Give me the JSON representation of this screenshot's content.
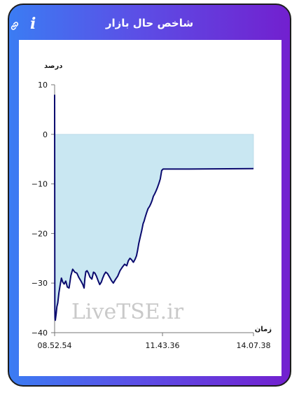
{
  "header": {
    "title": "شاخص حال بازار",
    "info_icon": "i"
  },
  "colors": {
    "line": "#0a0a6e",
    "area": "#c9e7f2",
    "gradient_start": "#3b7cf3",
    "gradient_end": "#7220cf"
  },
  "watermark": "LiveTSE.ir",
  "chart_data": {
    "type": "area",
    "ylabel": "درصد",
    "xlabel": "زمان",
    "ylim": [
      -40,
      10
    ],
    "yticks": [
      10,
      0,
      -10,
      -20,
      -30,
      -40
    ],
    "xtick_labels": [
      "08.52.54",
      "11.43.36",
      "14.07.38"
    ],
    "xtick_minutes": [
      532.9,
      703.6,
      847.6
    ],
    "xlim_minutes": [
      532.9,
      847.6
    ],
    "series": [
      {
        "values_minutes": [
          532.9,
          533.2,
          533.4,
          534.0,
          535.3,
          536.4,
          537.9,
          539.7,
          541.5,
          543.7,
          545.8,
          548.0,
          550.5,
          553.1,
          555.7,
          558.6,
          561.5,
          564.8,
          568.1,
          571.4,
          574.7,
          577.6,
          579.5,
          580.9,
          582.3,
          584.2,
          586.4,
          588.9,
          591.8,
          594.4,
          596.6,
          599.1,
          601.7,
          604.3,
          606.8,
          609.0,
          611.2,
          613.8,
          616.7,
          619.9,
          622.9,
          625.8,
          629.1,
          632.7,
          636.4,
          640.0,
          643.7,
          647.0,
          649.6,
          652.1,
          654.7,
          657.6,
          660.2,
          662.4,
          664.2,
          666.1,
          668.2,
          670.8,
          673.0,
          674.5,
          676.3,
          678.5,
          680.7,
          683.3,
          685.5,
          687.3,
          689.1,
          691.3,
          693.5,
          695.7,
          697.9,
          700.1,
          702.3,
          704.5,
          706.0,
          707.4,
          708.9,
          711.1,
          713.3,
          715.5,
          717.0,
          718.4,
          719.9,
          721.7,
          723.5,
          725.4,
          727.2,
          728.6,
          730.1,
          731.6,
          733.0,
          734.5,
          736.0,
          737.4,
          738.9,
          740.0,
          741.1,
          742.6,
          744.0,
          745.5,
          847.6
        ],
        "values": [
          8.0,
          -35.0,
          -37.0,
          -37.5,
          -36.2,
          -34.8,
          -34.0,
          -32.0,
          -30.5,
          -29.0,
          -29.8,
          -30.2,
          -29.6,
          -30.8,
          -31.0,
          -28.5,
          -27.2,
          -27.8,
          -28.0,
          -28.9,
          -29.6,
          -30.3,
          -31.0,
          -29.0,
          -27.7,
          -27.5,
          -28.0,
          -28.8,
          -29.2,
          -27.8,
          -28.0,
          -28.6,
          -29.5,
          -30.3,
          -29.8,
          -29.0,
          -28.3,
          -27.8,
          -28.1,
          -28.8,
          -29.5,
          -30.0,
          -29.3,
          -28.6,
          -27.5,
          -26.8,
          -26.2,
          -26.5,
          -25.5,
          -25.0,
          -25.3,
          -25.8,
          -25.2,
          -24.5,
          -23.4,
          -22.0,
          -20.8,
          -19.4,
          -18.0,
          -17.5,
          -16.7,
          -15.8,
          -15.0,
          -14.5,
          -13.9,
          -13.3,
          -12.5,
          -12.0,
          -11.4,
          -10.7,
          -9.9,
          -9.0,
          -7.3,
          -7.0,
          -7.0,
          -7.0,
          -7.0,
          -7.0,
          -7.0,
          -7.0,
          -7.0,
          -7.0,
          -7.0,
          -7.0,
          -7.0,
          -7.0,
          -7.0,
          -7.0,
          -7.0,
          -7.0,
          -7.0,
          -7.0,
          -7.0,
          -7.0,
          -7.0,
          -7.0,
          -7.0,
          -7.0,
          -7.0,
          -7.0,
          -6.9
        ]
      }
    ]
  }
}
